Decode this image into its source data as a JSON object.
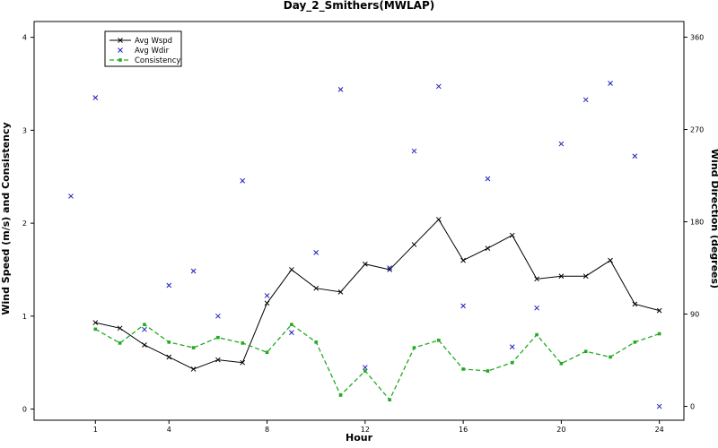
{
  "chart_data": {
    "type": "line",
    "title": "Day_2_Smithers(MWLAP)",
    "xlabel": "Hour",
    "ylabel": "Wind Speed (m/s) and Consistency",
    "y2label": "Wind Direction (degrees)",
    "xlim": [
      -1.5,
      25
    ],
    "ylim": [
      -0.12,
      4.17
    ],
    "y2lim": [
      -13.5,
      375.3
    ],
    "xticks": [
      "1",
      "4",
      "8",
      "12",
      "16",
      "20",
      "24"
    ],
    "yticks": [
      "0",
      "1",
      "2",
      "3",
      "4"
    ],
    "y2ticks": [
      "0",
      "90",
      "180",
      "270",
      "360"
    ],
    "grid": false,
    "legend_position": "top-left",
    "colors": {
      "wspd": "#000000",
      "wdir": "#1f1fbf",
      "consistency": "#22aa22"
    },
    "series": [
      {
        "name": "Avg Wspd",
        "axis": "left",
        "style": "line-x",
        "x": [
          1,
          2,
          3,
          4,
          5,
          6,
          7,
          8,
          9,
          10,
          11,
          12,
          13,
          14,
          15,
          16,
          17,
          18,
          19,
          20,
          21,
          22,
          23,
          24
        ],
        "y": [
          0.93,
          0.87,
          0.69,
          0.56,
          0.43,
          0.53,
          0.5,
          1.14,
          1.5,
          1.3,
          1.26,
          1.56,
          1.5,
          1.77,
          2.04,
          1.6,
          1.73,
          1.87,
          1.4,
          1.43,
          1.43,
          1.6,
          1.13,
          1.06
        ]
      },
      {
        "name": "Avg Wdir",
        "axis": "right",
        "style": "points-x",
        "x": [
          0,
          1,
          2,
          3,
          4,
          5,
          6,
          7,
          8,
          9,
          10,
          11,
          12,
          13,
          14,
          15,
          16,
          17,
          18,
          19,
          20,
          21,
          22,
          23,
          24
        ],
        "y": [
          205,
          301,
          338,
          75,
          118,
          132,
          88,
          220,
          108,
          72,
          150,
          309,
          38,
          135,
          249,
          312,
          98,
          222,
          58,
          96,
          256,
          299,
          315,
          244,
          0
        ]
      },
      {
        "name": "Consistency",
        "axis": "left",
        "style": "dashed-square",
        "x": [
          1,
          2,
          3,
          4,
          5,
          6,
          7,
          8,
          9,
          10,
          11,
          12,
          13,
          14,
          15,
          16,
          17,
          18,
          19,
          20,
          21,
          22,
          23,
          24
        ],
        "y": [
          0.86,
          0.71,
          0.91,
          0.72,
          0.66,
          0.77,
          0.71,
          0.61,
          0.91,
          0.72,
          0.15,
          0.41,
          0.1,
          0.66,
          0.74,
          0.43,
          0.41,
          0.5,
          0.8,
          0.49,
          0.62,
          0.56,
          0.72,
          0.81
        ]
      }
    ]
  }
}
